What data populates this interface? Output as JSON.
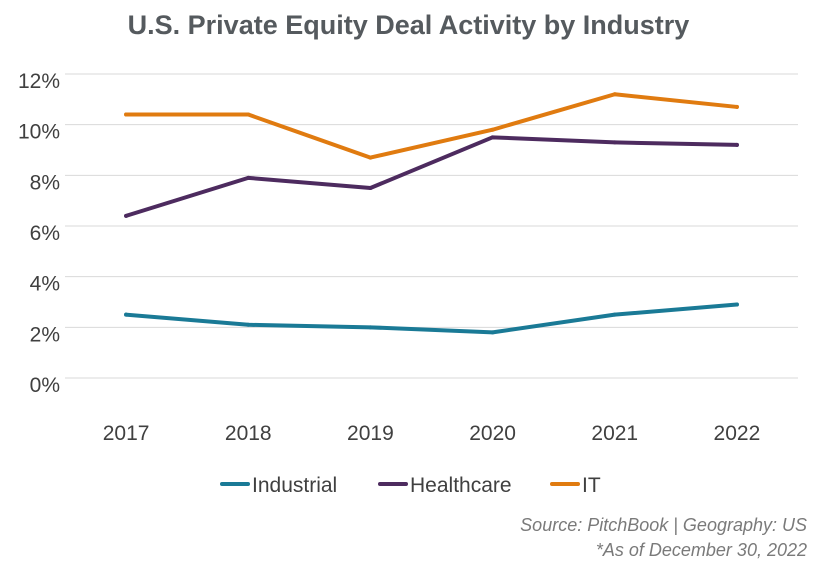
{
  "chart_data": {
    "type": "line",
    "title": "U.S. Private Equity Deal Activity by Industry",
    "xlabel": "",
    "ylabel": "",
    "categories": [
      "2017",
      "2018",
      "2019",
      "2020",
      "2021",
      "2022"
    ],
    "ylim": [
      0,
      12
    ],
    "yticks": [
      "0%",
      "2%",
      "4%",
      "6%",
      "8%",
      "10%",
      "12%"
    ],
    "grid": true,
    "legend_position": "bottom",
    "series": [
      {
        "name": "Industrial",
        "color": "#1a7a96",
        "values": [
          2.5,
          2.1,
          2.0,
          1.8,
          2.5,
          2.9
        ]
      },
      {
        "name": "Healthcare",
        "color": "#4d2b5f",
        "values": [
          6.4,
          7.9,
          7.5,
          9.5,
          9.3,
          9.2
        ]
      },
      {
        "name": "IT",
        "color": "#e07b10",
        "values": [
          10.4,
          10.4,
          8.7,
          9.8,
          11.2,
          10.7
        ]
      }
    ]
  },
  "source_lines": [
    "Source: PitchBook | Geography: US",
    "*As of December 30, 2022"
  ]
}
